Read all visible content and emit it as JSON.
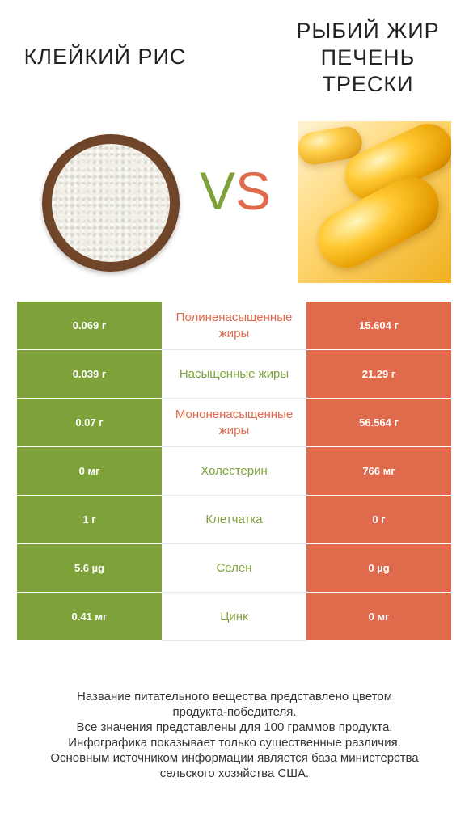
{
  "header": {
    "left_title": "КЛЕЙКИЙ РИС",
    "right_title": "РЫБИЙ ЖИР ПЕЧЕНЬ ТРЕСКИ",
    "vs_v": "V",
    "vs_s": "S"
  },
  "colors": {
    "left": "#7ea13a",
    "right": "#e06a4c"
  },
  "rows": [
    {
      "left": "0.069 г",
      "name": "Полиненасыщенные жиры",
      "right": "15.604 г",
      "winner": "right"
    },
    {
      "left": "0.039 г",
      "name": "Насыщенные жиры",
      "right": "21.29 г",
      "winner": "left"
    },
    {
      "left": "0.07 г",
      "name": "Мононенасыщенные жиры",
      "right": "56.564 г",
      "winner": "right"
    },
    {
      "left": "0 мг",
      "name": "Холестерин",
      "right": "766 мг",
      "winner": "left"
    },
    {
      "left": "1 г",
      "name": "Клетчатка",
      "right": "0 г",
      "winner": "left"
    },
    {
      "left": "5.6 µg",
      "name": "Селен",
      "right": "0 µg",
      "winner": "left"
    },
    {
      "left": "0.41 мг",
      "name": "Цинк",
      "right": "0 мг",
      "winner": "left"
    }
  ],
  "footer": {
    "line1": "Название питательного вещества представлено цветом",
    "line2": "продукта-победителя.",
    "line3": "Все значения представлены для 100 граммов продукта.",
    "line4": "Инфографика показывает только существенные различия.",
    "line5": "Основным источником информации является база министерства",
    "line6": "сельского хозяйства США."
  }
}
